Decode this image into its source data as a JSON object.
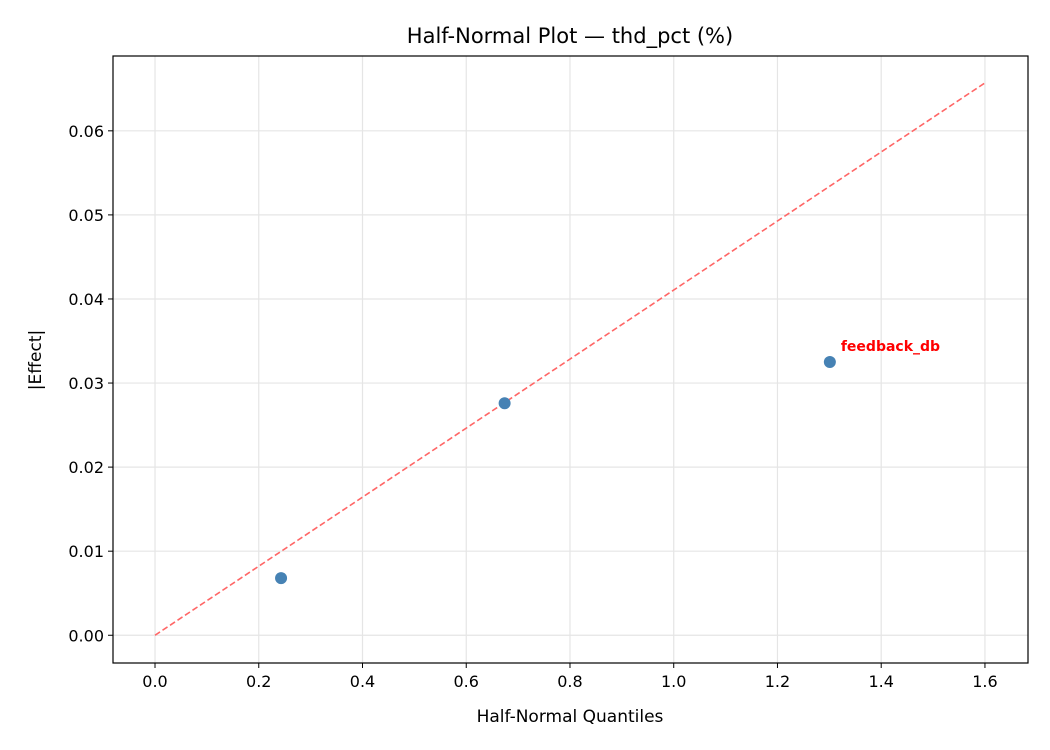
{
  "chart_data": {
    "type": "scatter",
    "title": "Half-Normal Plot — thd_pct (%)",
    "xlabel": "Half-Normal Quantiles",
    "ylabel": "|Effect|",
    "xlim": [
      -0.081,
      1.683
    ],
    "ylim": [
      -0.0033,
      0.0689
    ],
    "xticks": [
      0.0,
      0.2,
      0.4,
      0.6,
      0.8,
      1.0,
      1.2,
      1.4,
      1.6
    ],
    "xtick_labels": [
      "0.0",
      "0.2",
      "0.4",
      "0.6",
      "0.8",
      "1.0",
      "1.2",
      "1.4",
      "1.6"
    ],
    "yticks": [
      0.0,
      0.01,
      0.02,
      0.03,
      0.04,
      0.05,
      0.06
    ],
    "ytick_labels": [
      "0.00",
      "0.01",
      "0.02",
      "0.03",
      "0.04",
      "0.05",
      "0.06"
    ],
    "grid": true,
    "points": [
      {
        "x": 0.243,
        "y": 0.0068,
        "label": ""
      },
      {
        "x": 0.674,
        "y": 0.0276,
        "label": ""
      },
      {
        "x": 1.301,
        "y": 0.0325,
        "label": "feedback_db"
      }
    ],
    "reference_line": {
      "x": [
        0.0,
        1.6
      ],
      "y": [
        0.0,
        0.0657
      ]
    },
    "colors": {
      "points": "#4682b4",
      "reference_line": "#ff6666",
      "annotation": "#ff0000",
      "grid": "#e5e5e5"
    }
  }
}
